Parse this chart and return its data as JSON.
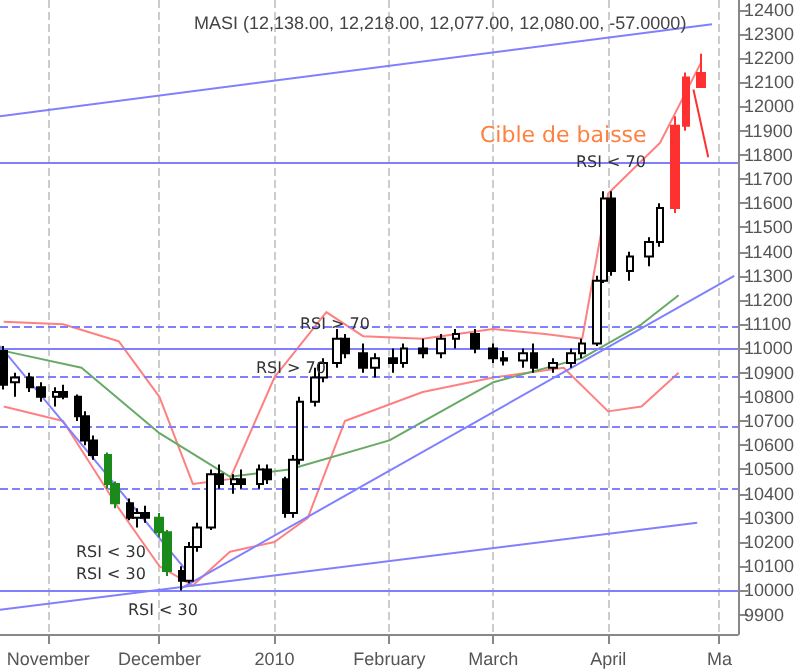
{
  "chart_data": {
    "type": "candlestick",
    "title": "MASI (12,138.00, 12,218.00, 12,077.00, 12,080.00, -57.0000)",
    "x": [
      "2009-10-20",
      "2009-10-23",
      "2009-10-27",
      "2009-10-30",
      "2009-11-03",
      "2009-11-05",
      "2009-11-09",
      "2009-11-11",
      "2009-11-13",
      "2009-11-17",
      "2009-11-19",
      "2009-11-23",
      "2009-11-25",
      "2009-11-27",
      "2009-12-01",
      "2009-12-03",
      "2009-12-07",
      "2009-12-09",
      "2009-12-11",
      "2009-12-15",
      "2009-12-17",
      "2009-12-21",
      "2009-12-23",
      "2009-12-28",
      "2009-12-30",
      "2010-01-04",
      "2010-01-06",
      "2010-01-08",
      "2010-01-12",
      "2010-01-14",
      "2010-01-18",
      "2010-01-20",
      "2010-01-25",
      "2010-01-28",
      "2010-02-02",
      "2010-02-05",
      "2010-02-10",
      "2010-02-15",
      "2010-02-19",
      "2010-02-24",
      "2010-03-01",
      "2010-03-04",
      "2010-03-09",
      "2010-03-12",
      "2010-03-17",
      "2010-03-22",
      "2010-03-25",
      "2010-03-29",
      "2010-03-31",
      "2010-04-02",
      "2010-04-07",
      "2010-04-12",
      "2010-04-15",
      "2010-04-19",
      "2010-04-22",
      "2010-04-26"
    ],
    "ohlc": [
      [
        10990,
        11010,
        10830,
        10850
      ],
      [
        10860,
        10900,
        10800,
        10880
      ],
      [
        10880,
        10900,
        10820,
        10840
      ],
      [
        10840,
        10860,
        10780,
        10800
      ],
      [
        10800,
        10840,
        10760,
        10820
      ],
      [
        10820,
        10850,
        10790,
        10800
      ],
      [
        10800,
        10810,
        10700,
        10720
      ],
      [
        10720,
        10740,
        10600,
        10620
      ],
      [
        10620,
        10640,
        10540,
        10560
      ],
      [
        10560,
        10570,
        10420,
        10440
      ],
      [
        10440,
        10450,
        10340,
        10360
      ],
      [
        10360,
        10380,
        10290,
        10300
      ],
      [
        10300,
        10340,
        10260,
        10320
      ],
      [
        10320,
        10350,
        10280,
        10300
      ],
      [
        10300,
        10320,
        10220,
        10240
      ],
      [
        10240,
        10250,
        10060,
        10080
      ],
      [
        10080,
        10100,
        10000,
        10040
      ],
      [
        10040,
        10200,
        10030,
        10180
      ],
      [
        10180,
        10280,
        10160,
        10260
      ],
      [
        10260,
        10500,
        10250,
        10480
      ],
      [
        10480,
        10520,
        10420,
        10440
      ],
      [
        10440,
        10480,
        10400,
        10460
      ],
      [
        10460,
        10500,
        10420,
        10440
      ],
      [
        10440,
        10520,
        10420,
        10500
      ],
      [
        10500,
        10520,
        10440,
        10460
      ],
      [
        10460,
        10470,
        10300,
        10320
      ],
      [
        10320,
        10560,
        10300,
        10540
      ],
      [
        10540,
        10800,
        10520,
        10780
      ],
      [
        10780,
        10920,
        10760,
        10880
      ],
      [
        10880,
        10960,
        10860,
        10940
      ],
      [
        10940,
        11080,
        10920,
        11040
      ],
      [
        11040,
        11060,
        10960,
        10980
      ],
      [
        10980,
        11020,
        10900,
        10920
      ],
      [
        10920,
        10980,
        10880,
        10960
      ],
      [
        10960,
        11000,
        10900,
        10940
      ],
      [
        10940,
        11020,
        10920,
        11000
      ],
      [
        11000,
        11040,
        10960,
        10980
      ],
      [
        10980,
        11060,
        10960,
        11040
      ],
      [
        11040,
        11080,
        11000,
        11060
      ],
      [
        11060,
        11080,
        10980,
        11000
      ],
      [
        11000,
        11020,
        10940,
        10960
      ],
      [
        10960,
        10990,
        10930,
        10950
      ],
      [
        10950,
        11000,
        10920,
        10980
      ],
      [
        10980,
        11020,
        10900,
        10920
      ],
      [
        10920,
        10960,
        10900,
        10940
      ],
      [
        10940,
        11000,
        10920,
        10980
      ],
      [
        10980,
        11040,
        10960,
        11020
      ],
      [
        11020,
        11300,
        11010,
        11280
      ],
      [
        11280,
        11650,
        11270,
        11620
      ],
      [
        11620,
        11650,
        11300,
        11320
      ],
      [
        11320,
        11400,
        11280,
        11380
      ],
      [
        11380,
        11460,
        11340,
        11440
      ],
      [
        11440,
        11600,
        11420,
        11580
      ],
      [
        11580,
        11960,
        11560,
        11920
      ],
      [
        11920,
        12140,
        11900,
        12120
      ],
      [
        12138,
        12218,
        12077,
        12080
      ]
    ],
    "colors": [
      "#000000",
      "#ffffff",
      "#000000",
      "#000000",
      "#ffffff",
      "#000000",
      "#000000",
      "#000000",
      "#000000",
      "#1a8a1a",
      "#1a8a1a",
      "#000000",
      "#ffffff",
      "#000000",
      "#1a8a1a",
      "#1a8a1a",
      "#000000",
      "#ffffff",
      "#ffffff",
      "#ffffff",
      "#000000",
      "#ffffff",
      "#000000",
      "#ffffff",
      "#000000",
      "#000000",
      "#ffffff",
      "#ffffff",
      "#ffffff",
      "#ffffff",
      "#ffffff",
      "#000000",
      "#000000",
      "#ffffff",
      "#000000",
      "#ffffff",
      "#000000",
      "#ffffff",
      "#ffffff",
      "#000000",
      "#000000",
      "#000000",
      "#ffffff",
      "#000000",
      "#ffffff",
      "#ffffff",
      "#ffffff",
      "#ffffff",
      "#ffffff",
      "#000000",
      "#ffffff",
      "#ffffff",
      "#ffffff",
      "#ff3030",
      "#ff3030",
      "#ff3030"
    ],
    "series": [
      {
        "type": "line",
        "color": "#ff8080",
        "x": [
          "2009-10-20",
          "2009-11-05",
          "2009-11-20",
          "2009-12-01",
          "2009-12-10",
          "2009-12-20",
          "2010-01-01",
          "2010-01-15",
          "2010-01-25",
          "2010-02-10",
          "2010-03-01",
          "2010-03-15",
          "2010-03-25",
          "2010-04-01",
          "2010-04-15",
          "2010-04-26"
        ],
        "values": [
          11110,
          11100,
          11030,
          10800,
          10440,
          10460,
          10880,
          11150,
          11050,
          11040,
          11080,
          11060,
          11040,
          11640,
          11850,
          12180
        ]
      },
      {
        "type": "line",
        "color": "#ff8080",
        "x": [
          "2009-10-20",
          "2009-11-05",
          "2009-11-20",
          "2009-12-01",
          "2009-12-10",
          "2009-12-20",
          "2010-01-01",
          "2010-01-10",
          "2010-01-20",
          "2010-02-10",
          "2010-03-01",
          "2010-03-20",
          "2010-04-01",
          "2010-04-10",
          "2010-04-20"
        ],
        "values": [
          10760,
          10700,
          10340,
          10100,
          10020,
          10160,
          10200,
          10300,
          10700,
          10820,
          10880,
          10920,
          10740,
          10760,
          10900
        ]
      },
      {
        "type": "line",
        "color": "#66aa66",
        "x": [
          "2009-10-20",
          "2009-11-10",
          "2009-12-01",
          "2009-12-20",
          "2010-01-05",
          "2010-02-01",
          "2010-03-01",
          "2010-03-25",
          "2010-04-10",
          "2010-04-20"
        ],
        "values": [
          10990,
          10920,
          10650,
          10470,
          10500,
          10620,
          10860,
          10960,
          11100,
          11220
        ]
      },
      {
        "type": "line",
        "color": "#8080ff",
        "x": [
          "2009-10-19",
          "2010-04-29"
        ],
        "values": [
          11960,
          12340
        ]
      },
      {
        "type": "line",
        "color": "#8080ff",
        "x": [
          "2009-10-19",
          "2010-04-25"
        ],
        "values": [
          9920,
          10280
        ]
      },
      {
        "type": "line",
        "color": "#8080ff",
        "x": [
          "2009-12-07",
          "2010-05-05"
        ],
        "values": [
          10010,
          11300
        ]
      },
      {
        "type": "line",
        "color": "#8080ff",
        "x": [
          "2009-10-19",
          "2009-12-10"
        ],
        "values": [
          11010,
          10050
        ]
      },
      {
        "type": "line",
        "color": "#ff3030",
        "x": [
          "2010-04-24",
          "2010-04-28"
        ],
        "values": [
          12070,
          11790
        ]
      }
    ],
    "xlim": [
      "2009-10-19",
      "2010-05-06"
    ],
    "xticks": [
      {
        "value": "2009-11-01",
        "label": "November"
      },
      {
        "value": "2009-12-01",
        "label": "December"
      },
      {
        "value": "2010-01-01",
        "label": "2010"
      },
      {
        "value": "2010-02-01",
        "label": "February"
      },
      {
        "value": "2010-03-01",
        "label": "March"
      },
      {
        "value": "2010-04-01",
        "label": "April"
      },
      {
        "value": "2010-05-01",
        "label": "Ma"
      }
    ],
    "ylim": [
      9820,
      12440
    ],
    "yticks": [
      9900,
      10000,
      10100,
      10200,
      10300,
      10400,
      10500,
      10600,
      10700,
      10800,
      10900,
      11000,
      11100,
      11200,
      11300,
      11400,
      11500,
      11600,
      11700,
      11800,
      11900,
      12000,
      12100,
      12200,
      12300,
      12400
    ],
    "grid": "x",
    "ref_lines": [
      {
        "axis": "y",
        "value": 11770,
        "color": "#8080ff",
        "line_style": "solid"
      },
      {
        "axis": "y",
        "value": 11000,
        "color": "#8080ff",
        "line_style": "solid"
      },
      {
        "axis": "y",
        "value": 10000,
        "color": "#8080ff",
        "line_style": "solid"
      },
      {
        "axis": "y",
        "value": 11090,
        "color": "#8080ff",
        "line_style": "dashed"
      },
      {
        "axis": "y",
        "value": 10880,
        "color": "#8080ff",
        "line_style": "dashed"
      },
      {
        "axis": "y",
        "value": 10680,
        "color": "#8080ff",
        "line_style": "dashed"
      },
      {
        "axis": "y",
        "value": 10420,
        "color": "#8080ff",
        "line_style": "dashed"
      }
    ],
    "annotations": [
      "Cible de baisse",
      "RSI < 70",
      "RSI > 70",
      "RSI > 70",
      "RSI < 30",
      "RSI < 30",
      "RSI < 30"
    ]
  }
}
